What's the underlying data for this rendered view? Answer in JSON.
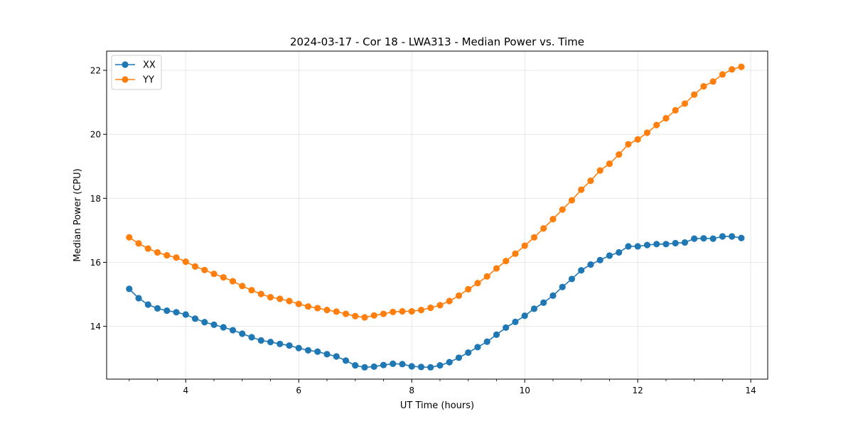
{
  "chart_data": {
    "type": "line",
    "title": "2024-03-17 - Cor 18 - LWA313 - Median Power vs. Time",
    "xlabel": "UT Time (hours)",
    "ylabel": "Median Power (CPU)",
    "xlim": [
      2.6,
      14.3
    ],
    "ylim": [
      12.35,
      22.6
    ],
    "xticks": [
      4,
      6,
      8,
      10,
      12,
      14
    ],
    "xtick_labels": [
      "4",
      "6",
      "8",
      "10",
      "12",
      "14"
    ],
    "xminor_step": 0.5,
    "yticks": [
      14,
      16,
      18,
      20,
      22
    ],
    "ytick_labels": [
      "14",
      "16",
      "18",
      "20",
      "22"
    ],
    "grid": true,
    "legend_position": "top-left",
    "x": [
      3.0,
      3.1667,
      3.3333,
      3.5,
      3.6667,
      3.8333,
      4.0,
      4.1667,
      4.3333,
      4.5,
      4.6667,
      4.8333,
      5.0,
      5.1667,
      5.3333,
      5.5,
      5.6667,
      5.8333,
      6.0,
      6.1667,
      6.3333,
      6.5,
      6.6667,
      6.8333,
      7.0,
      7.1667,
      7.3333,
      7.5,
      7.6667,
      7.8333,
      8.0,
      8.1667,
      8.3333,
      8.5,
      8.6667,
      8.8333,
      9.0,
      9.1667,
      9.3333,
      9.5,
      9.6667,
      9.8333,
      10.0,
      10.1667,
      10.3333,
      10.5,
      10.6667,
      10.8333,
      11.0,
      11.1667,
      11.3333,
      11.5,
      11.6667,
      11.8333,
      12.0,
      12.1667,
      12.3333,
      12.5,
      12.6667,
      12.8333,
      13.0,
      13.1667,
      13.3333,
      13.5,
      13.6667,
      13.8333
    ],
    "series": [
      {
        "name": "XX",
        "color": "#1f77b4",
        "values": [
          15.17,
          14.88,
          14.68,
          14.56,
          14.49,
          14.44,
          14.37,
          14.24,
          14.13,
          14.05,
          13.97,
          13.88,
          13.77,
          13.66,
          13.56,
          13.51,
          13.45,
          13.4,
          13.32,
          13.25,
          13.21,
          13.13,
          13.06,
          12.93,
          12.78,
          12.72,
          12.74,
          12.79,
          12.83,
          12.82,
          12.75,
          12.73,
          12.72,
          12.78,
          12.88,
          13.02,
          13.18,
          13.35,
          13.52,
          13.74,
          13.96,
          14.14,
          14.33,
          14.55,
          14.74,
          14.96,
          15.23,
          15.48,
          15.75,
          15.93,
          16.07,
          16.21,
          16.31,
          16.5,
          16.5,
          16.54,
          16.57,
          16.57,
          16.6,
          16.62,
          16.74,
          16.75,
          16.74,
          16.81,
          16.81,
          16.76
        ]
      },
      {
        "name": "YY",
        "color": "#ff7f0e",
        "values": [
          16.78,
          16.59,
          16.43,
          16.31,
          16.22,
          16.15,
          16.02,
          15.87,
          15.76,
          15.64,
          15.53,
          15.41,
          15.26,
          15.13,
          15.01,
          14.91,
          14.86,
          14.79,
          14.7,
          14.62,
          14.57,
          14.51,
          14.46,
          14.39,
          14.32,
          14.28,
          14.34,
          14.39,
          14.45,
          14.47,
          14.47,
          14.51,
          14.58,
          14.66,
          14.79,
          14.96,
          15.16,
          15.35,
          15.56,
          15.81,
          16.04,
          16.27,
          16.52,
          16.78,
          17.06,
          17.35,
          17.65,
          17.94,
          18.27,
          18.55,
          18.87,
          19.08,
          19.37,
          19.69,
          19.84,
          20.05,
          20.29,
          20.5,
          20.75,
          20.96,
          21.24,
          21.5,
          21.65,
          21.87,
          22.03,
          22.11
        ]
      }
    ]
  }
}
